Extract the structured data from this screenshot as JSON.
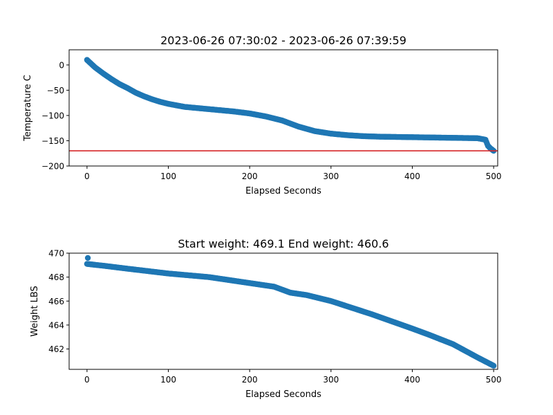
{
  "chart_data": [
    {
      "type": "scatter",
      "title": "2023-06-26 07:30:02 - 2023-06-26 07:39:59",
      "xlabel": "Elapsed Seconds",
      "ylabel": "Temperature C",
      "xlim": [
        -22,
        505
      ],
      "ylim": [
        -200,
        30
      ],
      "xticks": [
        0,
        100,
        200,
        300,
        400,
        500
      ],
      "yticks": [
        0,
        -50,
        -100,
        -150,
        -200
      ],
      "ytick_labels": [
        "0",
        "−50",
        "−100",
        "−150",
        "−200"
      ],
      "grid": false,
      "legend": "none",
      "marker_color": "#1f77b4",
      "reference_line": {
        "y": -170,
        "color": "#d62728"
      },
      "curve_keypoints": {
        "x": [
          0,
          10,
          20,
          30,
          40,
          50,
          60,
          70,
          80,
          90,
          100,
          110,
          120,
          140,
          160,
          180,
          200,
          220,
          240,
          260,
          280,
          300,
          320,
          340,
          360,
          400,
          440,
          480,
          490,
          493,
          496,
          500
        ],
        "y": [
          10,
          -5,
          -17,
          -28,
          -38,
          -46,
          -55,
          -62,
          -68,
          -73,
          -77,
          -80,
          -83,
          -86,
          -89,
          -92,
          -96,
          -102,
          -110,
          -122,
          -131,
          -136,
          -139,
          -141,
          -142,
          -143,
          -144,
          -145,
          -148,
          -160,
          -165,
          -170
        ]
      }
    },
    {
      "type": "scatter",
      "title": "Start weight: 469.1 End weight: 460.6",
      "xlabel": "Elapsed Seconds",
      "ylabel": "Weight LBS",
      "xlim": [
        -22,
        505
      ],
      "ylim": [
        460.3,
        470.0
      ],
      "xticks": [
        0,
        100,
        200,
        300,
        400,
        500
      ],
      "yticks": [
        462,
        464,
        466,
        468,
        470
      ],
      "ytick_labels": [
        "462",
        "464",
        "466",
        "468",
        "470"
      ],
      "grid": false,
      "legend": "none",
      "marker_color": "#1f77b4",
      "outlier": {
        "x": 1,
        "y": 469.6
      },
      "curve_keypoints": {
        "x": [
          0,
          20,
          50,
          100,
          150,
          200,
          230,
          250,
          270,
          300,
          350,
          400,
          420,
          450,
          480,
          500
        ],
        "y": [
          469.1,
          468.95,
          468.7,
          468.3,
          468.0,
          467.5,
          467.2,
          466.7,
          466.5,
          466.0,
          464.9,
          463.7,
          463.2,
          462.4,
          461.3,
          460.6
        ]
      }
    }
  ]
}
